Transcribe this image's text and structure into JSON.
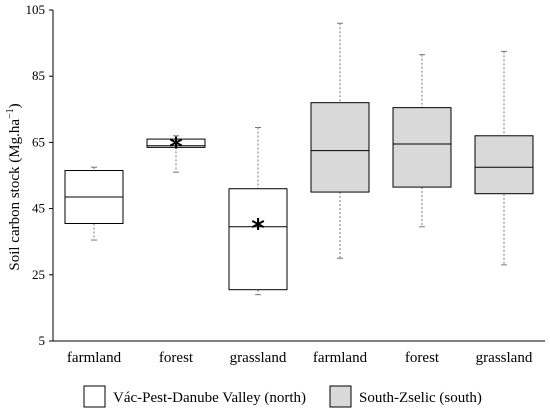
{
  "chart_data": {
    "type": "box",
    "title": "",
    "xlabel": "",
    "ylabel": "Soil carbon stock (Mg.ha",
    "ylabel_superscript": "−1",
    "ylabel_suffix": ")",
    "ylim": [
      5,
      105
    ],
    "yticks": [
      "5",
      "25",
      "45",
      "65",
      "85",
      "105"
    ],
    "ytick_values": [
      5,
      25,
      45,
      65,
      85,
      105
    ],
    "grid": false,
    "legend_position": "bottom",
    "categories": [
      "farmland",
      "forest",
      "grassland",
      "farmland",
      "forest",
      "grassland"
    ],
    "series": [
      {
        "name": "Vác-Pest-Danube  Valley (north)",
        "color": "#ffffff",
        "boxes": [
          {
            "category": "farmland",
            "min": 35.5,
            "q1": 40.5,
            "median": 48.5,
            "q3": 56.5,
            "max": 57.5,
            "mean_marker": false
          },
          {
            "category": "forest",
            "min": 56.0,
            "q1": 63.5,
            "median": 64.0,
            "q3": 66.0,
            "max": 67.0,
            "mean_marker": true,
            "mean": 64.0
          },
          {
            "category": "grassland",
            "min": 19.0,
            "q1": 20.5,
            "median": 39.5,
            "q3": 51.0,
            "max": 69.5,
            "mean_marker": true,
            "mean": 39.5
          }
        ]
      },
      {
        "name": "South-Zselic  (south)",
        "color": "#d9d9d9",
        "boxes": [
          {
            "category": "farmland",
            "min": 30.0,
            "q1": 50.0,
            "median": 62.5,
            "q3": 77.0,
            "max": 101.0,
            "mean_marker": false
          },
          {
            "category": "forest",
            "min": 39.5,
            "q1": 51.5,
            "median": 64.5,
            "q3": 75.5,
            "max": 91.5,
            "mean_marker": false
          },
          {
            "category": "grassland",
            "min": 28.0,
            "q1": 49.5,
            "median": 57.5,
            "q3": 67.0,
            "max": 92.5,
            "mean_marker": false
          }
        ]
      }
    ]
  }
}
